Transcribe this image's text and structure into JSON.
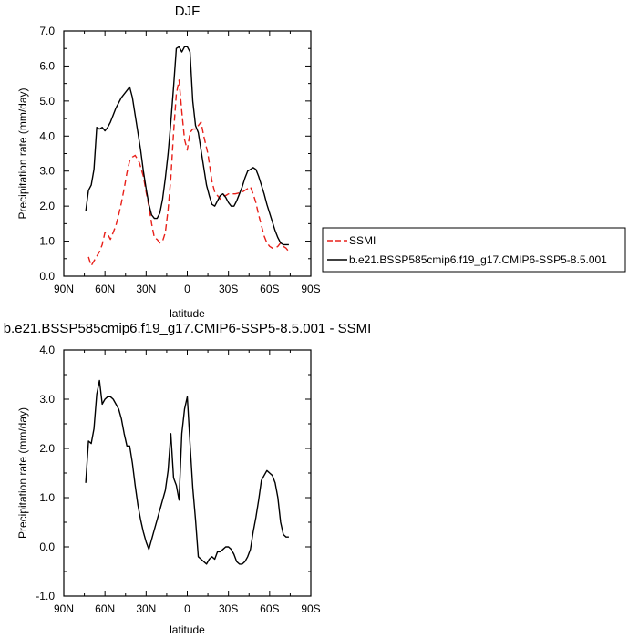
{
  "chart_data": [
    {
      "type": "line",
      "title": "DJF",
      "xlabel": "latitude",
      "ylabel": "Precipitation rate (mm/day)",
      "xlim": [
        -90,
        90
      ],
      "ylim": [
        0,
        7
      ],
      "x_axis_reversed": true,
      "xticks": [
        {
          "value": -90,
          "label": "90N"
        },
        {
          "value": -60,
          "label": "60N"
        },
        {
          "value": -30,
          "label": "30N"
        },
        {
          "value": 0,
          "label": "0"
        },
        {
          "value": 30,
          "label": "30S"
        },
        {
          "value": 60,
          "label": "60S"
        },
        {
          "value": 90,
          "label": "90S"
        }
      ],
      "yticks": [
        {
          "value": 0,
          "label": "0.0"
        },
        {
          "value": 1,
          "label": "1.0"
        },
        {
          "value": 2,
          "label": "2.0"
        },
        {
          "value": 3,
          "label": "3.0"
        },
        {
          "value": 4,
          "label": "4.0"
        },
        {
          "value": 5,
          "label": "5.0"
        },
        {
          "value": 6,
          "label": "6.0"
        },
        {
          "value": 7,
          "label": "7.0"
        }
      ],
      "grid": false,
      "legend_position": "right",
      "series": [
        {
          "name": "SSMI",
          "color": "#e8201a",
          "dash": "dashed",
          "x": [
            -72,
            -70,
            -67,
            -64,
            -62,
            -60,
            -58,
            -56,
            -54,
            -52,
            -50,
            -48,
            -46,
            -44,
            -42,
            -40,
            -38,
            -35,
            -32,
            -30,
            -28,
            -26,
            -24,
            -22,
            -20,
            -18,
            -16,
            -14,
            -12,
            -10,
            -8,
            -6,
            -4,
            -2,
            0,
            2,
            4,
            6,
            8,
            10,
            12,
            15,
            18,
            20,
            22,
            24,
            26,
            28,
            30,
            35,
            40,
            44,
            46,
            48,
            50,
            52,
            54,
            56,
            58,
            60,
            62,
            64,
            66,
            68,
            70,
            72,
            74
          ],
          "y": [
            0.55,
            0.3,
            0.5,
            0.7,
            0.9,
            1.25,
            1.2,
            1.05,
            1.25,
            1.45,
            1.75,
            2.1,
            2.5,
            2.95,
            3.3,
            3.4,
            3.45,
            3.25,
            2.85,
            2.4,
            2.0,
            1.5,
            1.1,
            1.05,
            0.95,
            1.0,
            1.25,
            1.9,
            2.8,
            4.1,
            5.2,
            5.6,
            4.7,
            3.9,
            3.6,
            4.1,
            4.2,
            4.2,
            4.3,
            4.4,
            4.0,
            3.5,
            2.7,
            2.4,
            2.3,
            2.2,
            2.3,
            2.3,
            2.35,
            2.35,
            2.4,
            2.5,
            2.55,
            2.35,
            2.1,
            1.75,
            1.45,
            1.15,
            0.95,
            0.85,
            0.8,
            0.8,
            0.85,
            0.95,
            0.85,
            0.8,
            0.7
          ]
        },
        {
          "name": "b.e21.BSSP585cmip6.f19_g17.CMIP6-SSP5-8.5.001",
          "color": "#000000",
          "dash": "solid",
          "x": [
            -74,
            -72,
            -70,
            -68,
            -66,
            -64,
            -62,
            -60,
            -58,
            -56,
            -54,
            -52,
            -50,
            -48,
            -46,
            -44,
            -42,
            -40,
            -38,
            -36,
            -34,
            -32,
            -30,
            -28,
            -26,
            -24,
            -22,
            -20,
            -18,
            -16,
            -14,
            -12,
            -10,
            -8,
            -6,
            -4,
            -2,
            0,
            2,
            4,
            6,
            8,
            10,
            12,
            14,
            16,
            18,
            20,
            22,
            24,
            26,
            28,
            30,
            32,
            34,
            36,
            38,
            40,
            42,
            44,
            46,
            48,
            50,
            52,
            54,
            56,
            58,
            60,
            62,
            64,
            66,
            68,
            70,
            72,
            74
          ],
          "y": [
            1.85,
            2.45,
            2.6,
            3.05,
            4.25,
            4.2,
            4.25,
            4.15,
            4.25,
            4.4,
            4.6,
            4.8,
            4.95,
            5.1,
            5.2,
            5.3,
            5.4,
            5.1,
            4.6,
            4.1,
            3.6,
            3.0,
            2.5,
            2.05,
            1.75,
            1.65,
            1.65,
            1.8,
            2.2,
            2.8,
            3.5,
            4.4,
            5.4,
            6.5,
            6.55,
            6.4,
            6.55,
            6.55,
            6.4,
            5.0,
            4.3,
            4.1,
            3.6,
            3.1,
            2.6,
            2.3,
            2.05,
            2.0,
            2.15,
            2.3,
            2.35,
            2.25,
            2.1,
            2.0,
            2.0,
            2.15,
            2.35,
            2.55,
            2.8,
            3.0,
            3.05,
            3.1,
            3.05,
            2.85,
            2.6,
            2.35,
            2.05,
            1.8,
            1.55,
            1.3,
            1.1,
            0.95,
            0.9,
            0.9,
            0.9
          ]
        }
      ]
    },
    {
      "type": "line",
      "title": "b.e21.BSSP585cmip6.f19_g17.CMIP6-SSP5-8.5.001 - SSMI",
      "xlabel": "latitude",
      "ylabel": "Precipitation rate (mm/day)",
      "xlim": [
        -90,
        90
      ],
      "ylim": [
        -1,
        4
      ],
      "x_axis_reversed": true,
      "xticks": [
        {
          "value": -90,
          "label": "90N"
        },
        {
          "value": -60,
          "label": "60N"
        },
        {
          "value": -30,
          "label": "30N"
        },
        {
          "value": 0,
          "label": "0"
        },
        {
          "value": 30,
          "label": "30S"
        },
        {
          "value": 60,
          "label": "60S"
        },
        {
          "value": 90,
          "label": "90S"
        }
      ],
      "yticks": [
        {
          "value": -1,
          "label": "-1.0"
        },
        {
          "value": 0,
          "label": "0.0"
        },
        {
          "value": 1,
          "label": "1.0"
        },
        {
          "value": 2,
          "label": "2.0"
        },
        {
          "value": 3,
          "label": "3.0"
        },
        {
          "value": 4,
          "label": "4.0"
        }
      ],
      "grid": false,
      "series": [
        {
          "color": "#000000",
          "dash": "solid",
          "x": [
            -74,
            -72,
            -70,
            -68,
            -66,
            -64,
            -62,
            -60,
            -58,
            -56,
            -54,
            -52,
            -50,
            -48,
            -46,
            -44,
            -42,
            -40,
            -38,
            -36,
            -34,
            -32,
            -30,
            -28,
            -26,
            -24,
            -22,
            -20,
            -18,
            -16,
            -14,
            -12,
            -10,
            -8,
            -6,
            -4,
            -2,
            0,
            2,
            4,
            6,
            8,
            10,
            12,
            14,
            16,
            18,
            20,
            22,
            24,
            26,
            28,
            30,
            32,
            34,
            36,
            38,
            40,
            42,
            44,
            46,
            48,
            50,
            52,
            54,
            56,
            58,
            60,
            62,
            64,
            66,
            68,
            70,
            72,
            74
          ],
          "y": [
            1.3,
            2.15,
            2.1,
            2.4,
            3.1,
            3.38,
            2.9,
            3.0,
            3.05,
            3.05,
            3.0,
            2.9,
            2.8,
            2.6,
            2.3,
            2.05,
            2.05,
            1.7,
            1.25,
            0.85,
            0.55,
            0.3,
            0.1,
            -0.05,
            0.15,
            0.35,
            0.55,
            0.75,
            0.95,
            1.15,
            1.55,
            2.3,
            1.4,
            1.25,
            0.95,
            2.3,
            2.8,
            3.05,
            2.1,
            1.2,
            0.55,
            -0.2,
            -0.25,
            -0.3,
            -0.35,
            -0.25,
            -0.2,
            -0.25,
            -0.1,
            -0.1,
            -0.05,
            0.0,
            0.0,
            -0.05,
            -0.15,
            -0.3,
            -0.35,
            -0.35,
            -0.3,
            -0.2,
            -0.05,
            0.3,
            0.6,
            0.95,
            1.35,
            1.45,
            1.55,
            1.5,
            1.45,
            1.3,
            1.0,
            0.5,
            0.25,
            0.2,
            0.2
          ]
        }
      ]
    }
  ]
}
